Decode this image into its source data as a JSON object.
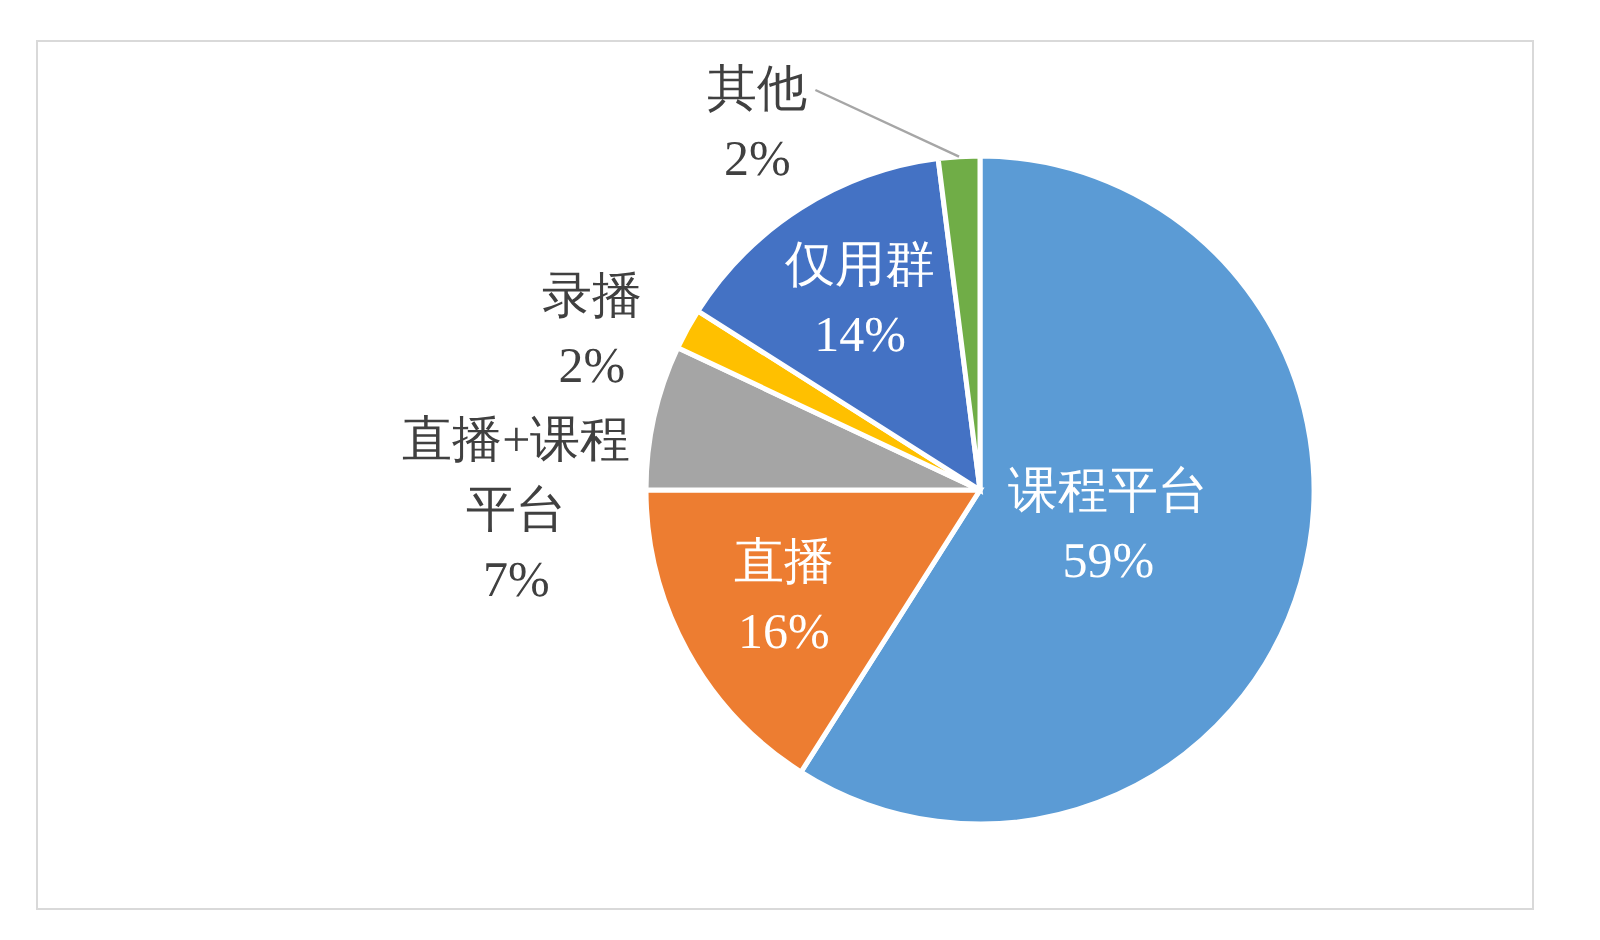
{
  "chart_data": {
    "type": "pie",
    "categories": [
      "课程平台",
      "直播",
      "直播+课程平台",
      "录播",
      "仅用群",
      "其他"
    ],
    "values": [
      59,
      16,
      7,
      2,
      14,
      2
    ],
    "value_labels": [
      "59%",
      "16%",
      "7%",
      "2%",
      "14%",
      "2%"
    ],
    "colors": [
      "#5b9bd5",
      "#ed7d31",
      "#a5a5a5",
      "#ffc000",
      "#4472c4",
      "#70ad47"
    ]
  }
}
